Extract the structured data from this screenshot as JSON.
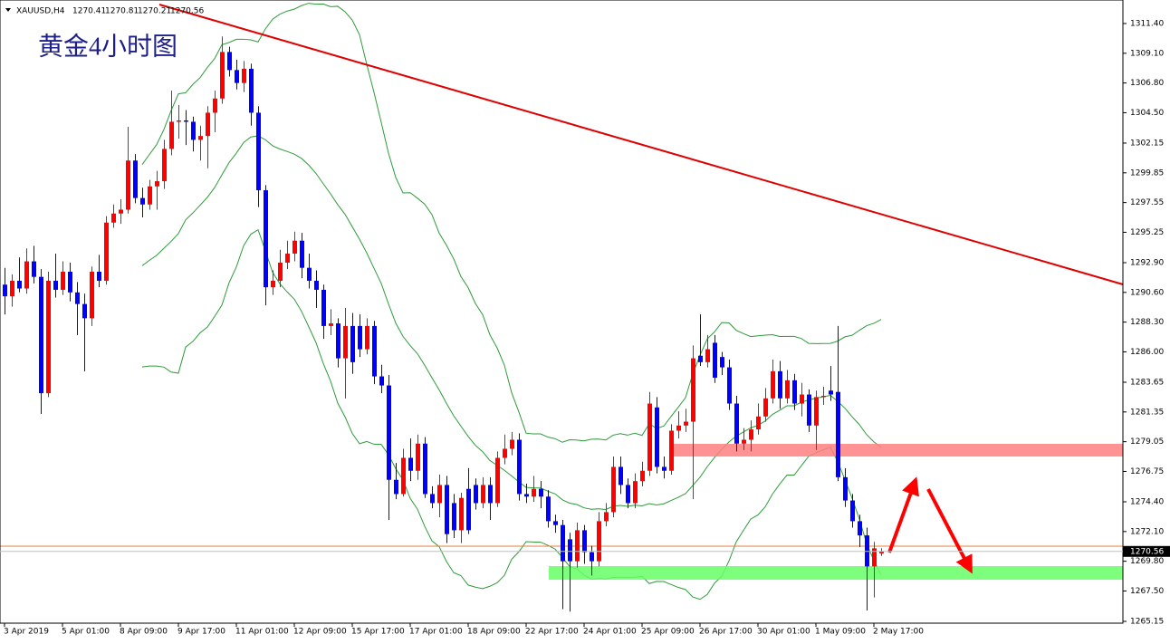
{
  "chart_data": {
    "type": "candlestick",
    "title": "黄金4小时图",
    "symbol": "XAUUSD,H4",
    "up_color": "#ff0000",
    "down_color": "#0000ff",
    "ylim": [
      1265.01,
      1313.22
    ],
    "yticks": [
      {
        "value": 1311.4,
        "label": "1311.40"
      },
      {
        "value": 1309.1,
        "label": "1309.10"
      },
      {
        "value": 1306.8,
        "label": "1306.80"
      },
      {
        "value": 1304.5,
        "label": "1304.50"
      },
      1302.15,
      1299.85,
      1297.55,
      1295.25,
      {
        "value": 1292.9,
        "label": "1292.90"
      },
      {
        "value": 1290.6,
        "label": "1290.60"
      },
      {
        "value": 1288.3,
        "label": "1288.30"
      },
      {
        "value": 1286,
        "label": "1286.00"
      },
      1283.65,
      1281.35,
      1279.05,
      1276.75,
      {
        "value": 1274.4,
        "label": "1274.40"
      },
      {
        "value": 1272.1,
        "label": "1272.10"
      },
      {
        "value": 1269.8,
        "label": "1269.80"
      },
      {
        "value": 1267.5,
        "label": "1267.50"
      },
      1265.15
    ],
    "categories": [
      "3 Apr 2019",
      null,
      null,
      null,
      null,
      null,
      null,
      null,
      "5 Apr 01:00",
      null,
      null,
      null,
      null,
      null,
      null,
      null,
      "8 Apr 09:00",
      null,
      null,
      null,
      null,
      null,
      null,
      null,
      "9 Apr 17:00",
      null,
      null,
      null,
      null,
      null,
      null,
      null,
      "11 Apr 01:00",
      null,
      null,
      null,
      null,
      null,
      null,
      null,
      "12 Apr 09:00",
      null,
      null,
      null,
      null,
      null,
      null,
      null,
      "15 Apr 17:00",
      null,
      null,
      null,
      null,
      null,
      null,
      null,
      "17 Apr 01:00",
      null,
      null,
      null,
      null,
      null,
      null,
      null,
      "18 Apr 09:00",
      null,
      null,
      null,
      null,
      null,
      null,
      null,
      "22 Apr 17:00",
      null,
      null,
      null,
      null,
      null,
      null,
      null,
      "24 Apr 01:00",
      null,
      null,
      null,
      null,
      null,
      null,
      null,
      "25 Apr 09:00",
      null,
      null,
      null,
      null,
      null,
      null,
      null,
      "26 Apr 17:00",
      null,
      null,
      null,
      null,
      null,
      null,
      null,
      "30 Apr 01:00",
      null,
      null,
      null,
      null,
      null,
      null,
      null,
      "1 May 09:00",
      null,
      null,
      null,
      null,
      null,
      null,
      null,
      "2 May 17:00",
      null
    ],
    "open": [
      1291.2,
      1290.3,
      1291.5,
      1290.9,
      1293.0,
      1291.8,
      1282.8,
      1291.5,
      1290.8,
      1292.2,
      1290.6,
      1289.7,
      1288.6,
      1292.2,
      1291.5,
      1296.0,
      1296.7,
      1297.0,
      1300.8,
      1297.9,
      1297.4,
      1298.8,
      1299.2,
      1301.7,
      1303.8,
      1303.9,
      1303.8,
      1302.4,
      1302.7,
      1304.5,
      1305.6,
      1309.2,
      1307.8,
      1306.8,
      1307.9,
      1304.5,
      1298.5,
      1291.0,
      1291.5,
      1292.9,
      1293.6,
      1294.6,
      1292.5,
      1291.5,
      1290.8,
      1288.0,
      1288.2,
      1285.5,
      1288.0,
      1288.0,
      1286.2,
      1288.0,
      1284.1,
      1283.4,
      1276.1,
      1275.0,
      1277.8,
      1276.8,
      1278.9,
      1275.0,
      1274.3,
      1275.7,
      1274.3,
      1272.2,
      1275.4,
      1275.7,
      1274.3,
      1275.7,
      1274.3,
      1277.8,
      1278.5,
      1279.2,
      1275.0,
      1274.8,
      1275.4,
      1274.8,
      1272.9,
      1272.6,
      1271.5,
      1269.8,
      1272.2,
      1270.5,
      1269.8,
      1272.9,
      1273.6,
      1277.1,
      1275.7,
      1274.3,
      1276.0,
      1276.8,
      1281.7,
      1277.1,
      1276.8,
      1279.9,
      1280.3,
      1280.6,
      1285.7,
      1285.2,
      1286.7,
      1285.6,
      1284.8,
      1282.0,
      1278.9,
      1279.2,
      1280.0,
      1281.0,
      1282.4,
      1284.5,
      1282.4,
      1283.8,
      1282.0,
      1282.7,
      1280.3,
      1282.5,
      1283.0,
      1282.9,
      1276.3,
      1274.5,
      1272.9,
      1271.8,
      1269.4,
      1270.41
    ],
    "high": [
      1292.5,
      1292.0,
      1293.3,
      1294.0,
      1294.2,
      1292.4,
      1292.2,
      1293.6,
      1293.0,
      1292.9,
      1291.4,
      1290.5,
      1292.6,
      1293.5,
      1296.5,
      1297.4,
      1297.8,
      1303.4,
      1301.3,
      1298.7,
      1299.3,
      1300.0,
      1302.4,
      1306.2,
      1305.1,
      1304.7,
      1304.2,
      1303.5,
      1305.0,
      1306.2,
      1310.4,
      1309.6,
      1308.6,
      1308.5,
      1308.3,
      1305.0,
      1298.9,
      1292.3,
      1293.9,
      1294.6,
      1295.3,
      1295.2,
      1293.6,
      1292.3,
      1291.2,
      1289.3,
      1288.6,
      1289.4,
      1289.0,
      1288.9,
      1288.6,
      1288.4,
      1285.0,
      1284.2,
      1277.4,
      1278.5,
      1279.3,
      1279.6,
      1279.4,
      1275.6,
      1276.5,
      1276.4,
      1275.0,
      1275.1,
      1277.0,
      1276.2,
      1276.3,
      1276.3,
      1278.3,
      1279.6,
      1279.8,
      1279.7,
      1275.8,
      1276.4,
      1276.0,
      1275.3,
      1273.4,
      1273.0,
      1272.0,
      1272.8,
      1272.6,
      1271.0,
      1273.6,
      1274.3,
      1277.9,
      1277.9,
      1276.2,
      1276.6,
      1277.5,
      1282.9,
      1282.5,
      1277.9,
      1280.4,
      1281.4,
      1281.6,
      1286.5,
      1288.9,
      1287.3,
      1287.3,
      1286.0,
      1285.4,
      1282.6,
      1280.1,
      1280.7,
      1282.0,
      1283.2,
      1285.4,
      1285.3,
      1284.6,
      1284.3,
      1283.6,
      1283.1,
      1283.0,
      1283.3,
      1284.9,
      1288.0,
      1277.0,
      1275.0,
      1273.4,
      1272.4,
      1271.3,
      1270.81
    ],
    "low": [
      1288.9,
      1289.5,
      1290.6,
      1290.5,
      1291.3,
      1281.2,
      1282.5,
      1290.2,
      1290.4,
      1289.9,
      1287.3,
      1284.5,
      1288.0,
      1291.0,
      1291.2,
      1295.6,
      1295.9,
      1296.7,
      1297.5,
      1296.4,
      1297.0,
      1297.0,
      1298.6,
      1301.2,
      1302.5,
      1302.0,
      1301.5,
      1300.8,
      1300.2,
      1303.0,
      1305.2,
      1307.3,
      1306.3,
      1306.1,
      1303.5,
      1297.2,
      1289.6,
      1290.4,
      1291.0,
      1292.4,
      1293.0,
      1291.7,
      1290.9,
      1289.4,
      1287.0,
      1287.3,
      1284.8,
      1282.4,
      1284.3,
      1285.6,
      1285.8,
      1283.5,
      1282.8,
      1273.0,
      1274.6,
      1274.8,
      1276.0,
      1276.1,
      1274.7,
      1273.9,
      1273.2,
      1271.2,
      1271.6,
      1271.2,
      1271.9,
      1273.8,
      1273.9,
      1273.0,
      1274.0,
      1277.3,
      1278.0,
      1274.5,
      1274.3,
      1274.4,
      1273.9,
      1272.4,
      1272.0,
      1266.1,
      1265.9,
      1269.3,
      1269.6,
      1268.7,
      1269.4,
      1272.5,
      1273.2,
      1275.0,
      1273.9,
      1273.9,
      1275.6,
      1276.4,
      1276.6,
      1276.2,
      1276.5,
      1279.3,
      1279.8,
      1274.6,
      1284.9,
      1284.8,
      1283.6,
      1284.2,
      1281.5,
      1278.3,
      1278.4,
      1278.3,
      1279.6,
      1280.6,
      1282.0,
      1281.6,
      1282.0,
      1281.5,
      1281.0,
      1279.8,
      1278.4,
      1281.9,
      1282.2,
      1276.0,
      1274.0,
      1272.4,
      1270.9,
      1266.0,
      1267.0,
      1270.21
    ],
    "close": [
      1290.3,
      1291.5,
      1290.9,
      1293.0,
      1291.8,
      1282.8,
      1291.5,
      1290.8,
      1292.2,
      1290.6,
      1289.7,
      1288.6,
      1292.2,
      1291.5,
      1296.0,
      1296.7,
      1297.0,
      1300.8,
      1297.9,
      1297.4,
      1298.8,
      1299.2,
      1301.7,
      1303.8,
      1303.9,
      1303.8,
      1302.4,
      1302.7,
      1304.5,
      1305.6,
      1309.2,
      1307.8,
      1306.8,
      1307.9,
      1304.5,
      1298.5,
      1291.0,
      1291.5,
      1292.9,
      1293.6,
      1294.6,
      1292.5,
      1291.5,
      1290.8,
      1288.0,
      1288.2,
      1285.5,
      1288.0,
      1285.2,
      1286.2,
      1288.0,
      1284.1,
      1283.4,
      1276.1,
      1275.0,
      1277.8,
      1276.8,
      1278.9,
      1275.0,
      1274.3,
      1275.7,
      1271.9,
      1272.2,
      1274.7,
      1272.2,
      1274.3,
      1275.7,
      1274.3,
      1277.8,
      1278.5,
      1279.2,
      1275.0,
      1274.8,
      1275.4,
      1274.8,
      1272.9,
      1272.6,
      1269.8,
      1269.8,
      1272.2,
      1270.5,
      1269.8,
      1272.9,
      1273.6,
      1277.1,
      1275.7,
      1274.3,
      1276.0,
      1276.8,
      1282.0,
      1277.1,
      1276.8,
      1279.9,
      1280.3,
      1280.6,
      1285.5,
      1285.2,
      1286.2,
      1284.0,
      1284.8,
      1282.0,
      1278.9,
      1279.2,
      1280.0,
      1281.0,
      1282.4,
      1284.5,
      1282.4,
      1283.8,
      1282.0,
      1282.7,
      1280.3,
      1282.5,
      1282.6,
      1282.7,
      1276.3,
      1274.5,
      1272.9,
      1271.8,
      1269.4,
      1270.8,
      1270.56
    ]
  }
}
